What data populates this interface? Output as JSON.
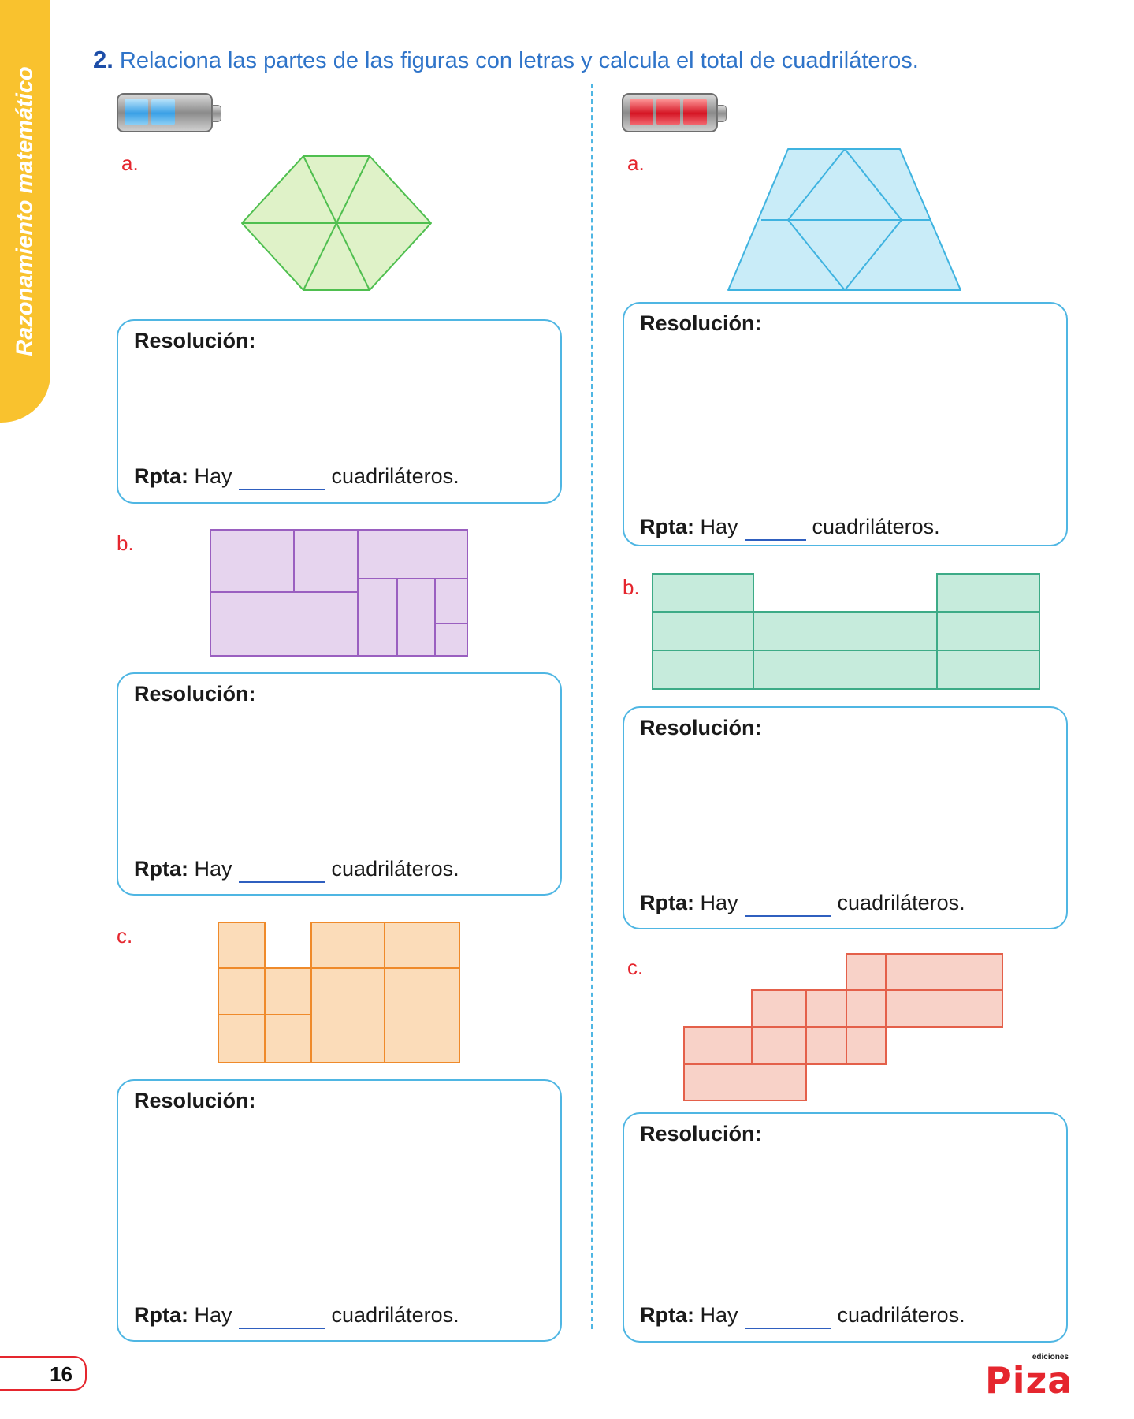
{
  "side_tab": {
    "text": "Razonamiento matemático"
  },
  "question": {
    "number": "2.",
    "text": "Relaciona las partes de las figuras con letras y calcula el total de cuadriláteros."
  },
  "levels": {
    "left": {
      "filled_cells": 2,
      "total_cells": 3,
      "color": "#3aa0e6"
    },
    "right": {
      "filled_cells": 3,
      "total_cells": 3,
      "color": "#d51524"
    }
  },
  "colors": {
    "label": "#e5262e",
    "box_border": "#4fb6e3",
    "green_fill": "#dff2c8",
    "green_stroke": "#4fbf4f",
    "blue_fill": "#c9ecf8",
    "blue_stroke": "#3fb3e0",
    "purple_fill": "#e6d4ee",
    "purple_stroke": "#9a5fc0",
    "teal_fill": "#c6ebdc",
    "teal_stroke": "#3dab87",
    "orange_fill": "#fbdcb9",
    "orange_stroke": "#ef8a2a",
    "salmon_fill": "#f8d2c8",
    "salmon_stroke": "#e4604a"
  },
  "left_column": {
    "items": [
      {
        "label": "a.",
        "box": {
          "title": "Resolución:",
          "rpta_label": "Rpta:",
          "rpta_prefix": "Hay",
          "rpta_suffix": "cuadriláteros."
        }
      },
      {
        "label": "b.",
        "box": {
          "title": "Resolución:",
          "rpta_label": "Rpta:",
          "rpta_prefix": "Hay",
          "rpta_suffix": "cuadriláteros."
        }
      },
      {
        "label": "c.",
        "box": {
          "title": "Resolución:",
          "rpta_label": "Rpta:",
          "rpta_prefix": "Hay",
          "rpta_suffix": "cuadriláteros."
        }
      }
    ]
  },
  "right_column": {
    "items": [
      {
        "label": "a.",
        "box": {
          "title": "Resolución:",
          "rpta_label": "Rpta:",
          "rpta_prefix": "Hay",
          "rpta_suffix": "cuadriláteros."
        }
      },
      {
        "label": "b.",
        "box": {
          "title": "Resolución:",
          "rpta_label": "Rpta:",
          "rpta_prefix": "Hay",
          "rpta_suffix": "cuadriláteros."
        }
      },
      {
        "label": "c.",
        "box": {
          "title": "Resolución:",
          "rpta_label": "Rpta:",
          "rpta_prefix": "Hay",
          "rpta_suffix": "cuadriláteros."
        }
      }
    ]
  },
  "footer": {
    "page_number": "16",
    "publisher_small": "ediciones",
    "publisher_name": "Piza"
  }
}
